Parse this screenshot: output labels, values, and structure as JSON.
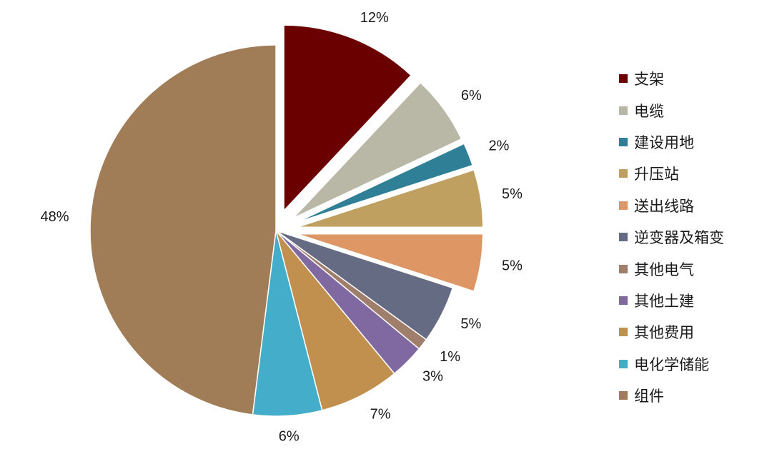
{
  "chart_data": {
    "type": "pie",
    "title": "",
    "legend_position": "right",
    "slices": [
      {
        "label": "支架",
        "value": 12,
        "display": "12%",
        "color": "#6b0000",
        "exploded": true
      },
      {
        "label": "电缆",
        "value": 6,
        "display": "6%",
        "color": "#b9b8a6",
        "exploded": true
      },
      {
        "label": "建设用地",
        "value": 2,
        "display": "2%",
        "color": "#2f7f96",
        "exploded": true
      },
      {
        "label": "升压站",
        "value": 5,
        "display": "5%",
        "color": "#bfa061",
        "exploded": true
      },
      {
        "label": "送出线路",
        "value": 5,
        "display": "5%",
        "color": "#de9665",
        "exploded": true
      },
      {
        "label": "逆变器及箱变",
        "value": 5,
        "display": "5%",
        "color": "#666b84",
        "exploded": false
      },
      {
        "label": "其他电气",
        "value": 1,
        "display": "1%",
        "color": "#a07e6c",
        "exploded": false
      },
      {
        "label": "其他土建",
        "value": 3,
        "display": "3%",
        "color": "#7f69a0",
        "exploded": false
      },
      {
        "label": "其他费用",
        "value": 7,
        "display": "7%",
        "color": "#c18f4e",
        "exploded": false
      },
      {
        "label": "电化学储能",
        "value": 6,
        "display": "6%",
        "color": "#44adc9",
        "exploded": false
      },
      {
        "label": "组件",
        "value": 48,
        "display": "48%",
        "color": "#a07c57",
        "exploded": false
      }
    ]
  }
}
